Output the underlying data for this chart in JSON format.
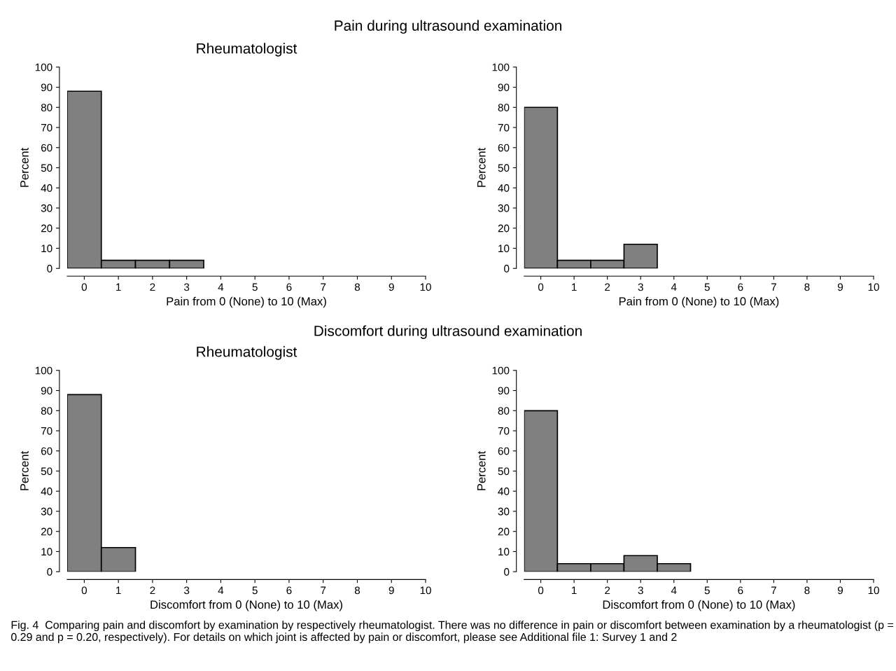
{
  "chart_data": [
    {
      "type": "histogram",
      "title": "Rheumatologist",
      "xlabel": "Pain from 0 (None) to 10 (Max)",
      "ylabel": "Percent",
      "bins": [
        -0.5,
        0.5,
        1.5,
        2.5,
        3.5
      ],
      "values": [
        88,
        4,
        4,
        4
      ],
      "color": "#808080",
      "xlim": [
        -0.5,
        10
      ],
      "ylim": [
        0,
        100
      ],
      "xticks": [
        0,
        1,
        2,
        3,
        4,
        5,
        6,
        7,
        8,
        9,
        10
      ],
      "yticks": [
        0,
        10,
        20,
        30,
        40,
        50,
        60,
        70,
        80,
        90,
        100
      ],
      "annotations": [
        "Pain during ultrasound examination",
        "Fig. 4  Comparing pain and discomfort by examination by respectively rheumatologist. There was no difference in pain or discomfort between examination by a rheumatologist (p = 0.29 and p = 0.20, respectively). For details on which joint is affected by pain or discomfort, please see Additional file 1: Survey 1 and 2"
      ]
    },
    {
      "type": "histogram",
      "xlabel": "Pain from 0 (None) to 10 (Max)",
      "ylabel": "Percent",
      "bins": [
        -0.5,
        0.5,
        1.5,
        2.5,
        3.5
      ],
      "values": [
        80,
        4,
        4,
        12
      ],
      "color": "#808080",
      "xlim": [
        -0.5,
        10
      ],
      "ylim": [
        0,
        100
      ],
      "xticks": [
        0,
        1,
        2,
        3,
        4,
        5,
        6,
        7,
        8,
        9,
        10
      ],
      "yticks": [
        0,
        10,
        20,
        30,
        40,
        50,
        60,
        70,
        80,
        90,
        100
      ]
    },
    {
      "type": "histogram",
      "title": "Rheumatologist",
      "xlabel": "Discomfort from 0 (None) to 10 (Max)",
      "ylabel": "Percent",
      "bins": [
        -0.5,
        0.5,
        1.5
      ],
      "values": [
        88,
        12
      ],
      "color": "#808080",
      "xlim": [
        -0.5,
        10
      ],
      "ylim": [
        0,
        100
      ],
      "xticks": [
        0,
        1,
        2,
        3,
        4,
        5,
        6,
        7,
        8,
        9,
        10
      ],
      "yticks": [
        0,
        10,
        20,
        30,
        40,
        50,
        60,
        70,
        80,
        90,
        100
      ],
      "annotations": [
        "Discomfort during ultrasound examination"
      ]
    },
    {
      "type": "histogram",
      "xlabel": "Discomfort from 0 (None) to 10 (Max)",
      "ylabel": "Percent",
      "bins": [
        -0.5,
        0.5,
        1.5,
        2.5,
        3.5,
        4.5
      ],
      "values": [
        80,
        4,
        4,
        8,
        4
      ],
      "color": "#808080",
      "xlim": [
        -0.5,
        10
      ],
      "ylim": [
        0,
        100
      ],
      "xticks": [
        0,
        1,
        2,
        3,
        4,
        5,
        6,
        7,
        8,
        9,
        10
      ],
      "yticks": [
        0,
        10,
        20,
        30,
        40,
        50,
        60,
        70,
        80,
        90,
        100
      ]
    }
  ]
}
